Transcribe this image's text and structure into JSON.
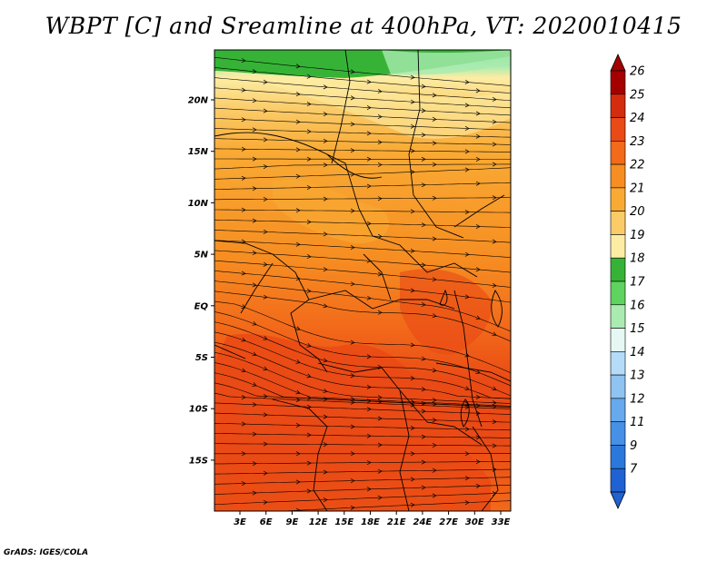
{
  "title": "WBPT [C] and Sreamline at 400hPa, VT: 2020010415",
  "credit": "GrADS: IGES/COLA",
  "map": {
    "lon_ticks": [
      "3E",
      "6E",
      "9E",
      "12E",
      "15E",
      "18E",
      "21E",
      "24E",
      "27E",
      "30E",
      "33E"
    ],
    "lat_ticks": [
      "20N",
      "15N",
      "10N",
      "5N",
      "EQ",
      "5S",
      "10S",
      "15S"
    ],
    "streamline_color": "#000000",
    "boundary_color": "#000000"
  },
  "colorbar": {
    "levels": [
      "26",
      "25",
      "24",
      "23",
      "22",
      "21",
      "20",
      "19",
      "18",
      "17",
      "16",
      "15",
      "14",
      "13",
      "12",
      "11",
      "9",
      "7"
    ],
    "colors": [
      "#a50000",
      "#d42c0e",
      "#ea4a15",
      "#f26a1a",
      "#f68e22",
      "#f9aa34",
      "#fbcb68",
      "#fdeda4",
      "#36b336",
      "#5fd35f",
      "#a9ebb0",
      "#e5f8f3",
      "#b4dcf8",
      "#8ec3f2",
      "#66a9ec",
      "#4690e6",
      "#2b78dd",
      "#1f62d2"
    ],
    "top_arrow_color": "#a50000",
    "bottom_arrow_color": "#1f62d2"
  }
}
